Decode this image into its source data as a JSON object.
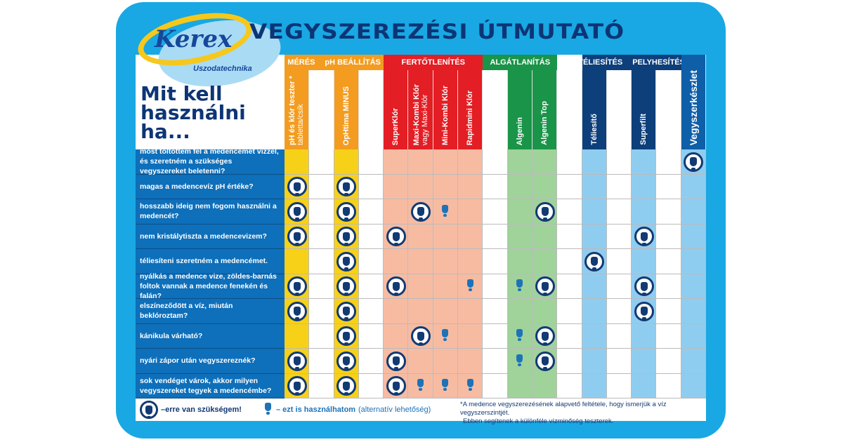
{
  "header": {
    "title": "VEGYSZEREZÉSI ÚTMUTATÓ",
    "logo_brand": "Kerex",
    "logo_sub": "Uszodatechnika",
    "question_heading": [
      "Mit kell",
      "használni",
      "ha..."
    ]
  },
  "colors": {
    "frame": "#19a8e3",
    "navy": "#0d3576",
    "orange": "#f39c1f",
    "yellow": "#f7d117",
    "red": "#e31e24",
    "salmon": "#f7bba2",
    "green": "#1a9448",
    "light_green": "#9fd39a",
    "dark_blue": "#0d3f7a",
    "light_blue": "#8fcdf0",
    "question_bg": "#0e6fba"
  },
  "groups": [
    {
      "labels": [
        "MÉRÉS",
        "pH BEÁLLÍTÁS"
      ],
      "color": "#f39c1f",
      "cols": [
        0,
        4
      ]
    },
    {
      "labels": [
        "FERTŐTLENÍTÉS"
      ],
      "color": "#e31e24",
      "cols": [
        4,
        8
      ]
    },
    {
      "labels": [
        "ALGÁTLANÍTÁS"
      ],
      "color": "#1a9448",
      "cols": [
        8,
        11
      ]
    },
    {
      "labels": [
        "TÉLIESÍTÉS",
        "PELYHESÍTÉS"
      ],
      "color": "#0d3f7a",
      "cols": [
        12,
        16
      ]
    }
  ],
  "columns": [
    {
      "name": "pH és klór teszter *",
      "sub": "tabletta/csík",
      "head": "#f39c1f",
      "body": "#f7d117"
    },
    {
      "name": "",
      "head": "#fff",
      "body": "#fff"
    },
    {
      "name": "OpHtima MINUS",
      "head": "#f39c1f",
      "body": "#f7d117"
    },
    {
      "name": "",
      "head": "#fff",
      "body": "#fff"
    },
    {
      "name": "SuperKlór",
      "head": "#e31e24",
      "body": "#f7bba2"
    },
    {
      "name": "Maxi-Kombi Klór",
      "sub": "vagy Maxi-Klór",
      "head": "#e31e24",
      "body": "#f7bba2"
    },
    {
      "name": "Mini-Kombi Klór",
      "head": "#e31e24",
      "body": "#f7bba2"
    },
    {
      "name": "Rapidmini Klór",
      "head": "#e31e24",
      "body": "#f7bba2"
    },
    {
      "name": "",
      "head": "#fff",
      "body": "#fff"
    },
    {
      "name": "Algenin",
      "head": "#1a9448",
      "body": "#9fd39a"
    },
    {
      "name": "Algenin Top",
      "head": "#1a9448",
      "body": "#9fd39a"
    },
    {
      "name": "",
      "head": "#fff",
      "body": "#fff"
    },
    {
      "name": "Téliesítő",
      "head": "#0d3f7a",
      "body": "#8fcdf0"
    },
    {
      "name": "",
      "head": "#fff",
      "body": "#fff"
    },
    {
      "name": "Superfilt",
      "head": "#0d3f7a",
      "body": "#8fcdf0"
    },
    {
      "name": "",
      "head": "#fff",
      "body": "#fff"
    },
    {
      "name": "Vegyszerkészlet",
      "head": "#0e5ea8",
      "body": "#8fcdf0"
    }
  ],
  "rows": [
    {
      "q": "most töltöttem fel a medencémet vízzel, és szeretném a szükséges vegyszereket beletenni?",
      "marks": [
        "",
        "",
        "",
        "",
        "",
        "",
        "",
        "",
        "",
        "",
        "",
        "",
        "",
        "",
        "",
        "",
        "B"
      ]
    },
    {
      "q": "magas a medencevíz pH értéke?",
      "marks": [
        "B",
        "",
        "B",
        "",
        "",
        "",
        "",
        "",
        "",
        "",
        "",
        "",
        "",
        "",
        "",
        "",
        ""
      ]
    },
    {
      "q": "hosszabb ideig nem fogom használni a medencét?",
      "marks": [
        "B",
        "",
        "B",
        "",
        "",
        "B",
        "S",
        "",
        "",
        "",
        "B",
        "",
        "",
        "",
        "",
        "",
        ""
      ]
    },
    {
      "q": "nem kristálytiszta a medencevizem?",
      "marks": [
        "B",
        "",
        "B",
        "",
        "B",
        "",
        "",
        "",
        "",
        "",
        "",
        "",
        "",
        "",
        "B",
        "",
        ""
      ]
    },
    {
      "q": "téliesíteni szeretném a medencémet.",
      "marks": [
        "",
        "",
        "B",
        "",
        "",
        "",
        "",
        "",
        "",
        "",
        "",
        "",
        "B",
        "",
        "",
        "",
        ""
      ]
    },
    {
      "q": "nyálkás a medence vize, zöldes-barnás foltok vannak a medence fenekén és falán?",
      "marks": [
        "B",
        "",
        "B",
        "",
        "B",
        "",
        "",
        "S",
        "",
        "S",
        "B",
        "",
        "",
        "",
        "B",
        "",
        ""
      ]
    },
    {
      "q": "elszíneződött a víz, miután beklóroztam?",
      "marks": [
        "B",
        "",
        "B",
        "",
        "",
        "",
        "",
        "",
        "",
        "",
        "",
        "",
        "",
        "",
        "B",
        "",
        ""
      ]
    },
    {
      "q": "kánikula várható?",
      "marks": [
        "",
        "",
        "B",
        "",
        "",
        "B",
        "S",
        "",
        "",
        "S",
        "B",
        "",
        "",
        "",
        "",
        "",
        ""
      ]
    },
    {
      "q": "nyári zápor után vegyszereznék?",
      "marks": [
        "B",
        "",
        "B",
        "",
        "B",
        "",
        "",
        "",
        "",
        "S",
        "B",
        "",
        "",
        "",
        "",
        "",
        ""
      ]
    },
    {
      "q": "sok vendéget várok, akkor milyen vegyszereket tegyek a medencémbe?",
      "marks": [
        "B",
        "",
        "B",
        "",
        "B",
        "S",
        "S",
        "S",
        "",
        "",
        "",
        "",
        "",
        "",
        "",
        "",
        ""
      ]
    }
  ],
  "legend": {
    "big": "–erre van szükségem!",
    "small": "– ezt is használhatom",
    "small_note": "(alternatív lehetőség)",
    "footnote": [
      "*A medence vegyszerezésének alapvető feltétele, hogy ismerjük a víz vegyszerszintjét.",
      "Ebben segítenek a különféle vízminőség teszterek."
    ]
  }
}
